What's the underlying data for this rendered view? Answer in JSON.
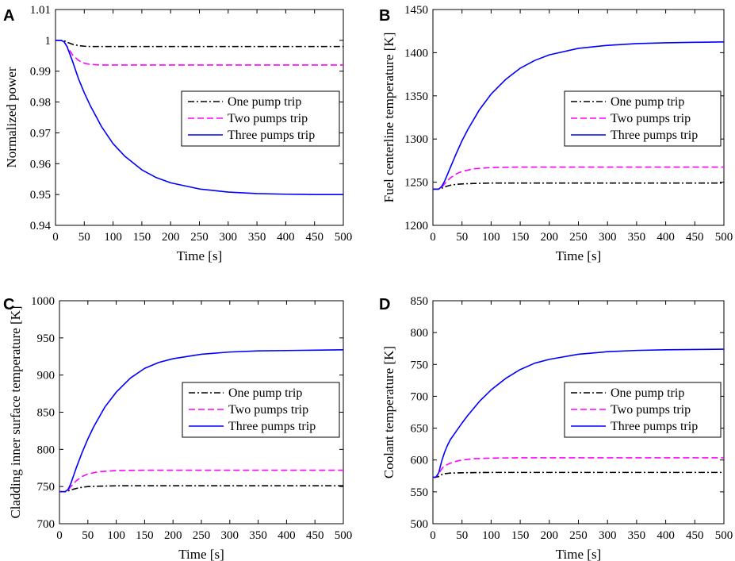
{
  "figure": {
    "background": "#ffffff"
  },
  "legend_entries": [
    {
      "key": "one",
      "label": "One pump trip",
      "color": "#000000",
      "dash": "dashdot"
    },
    {
      "key": "two",
      "label": "Two pumps trip",
      "color": "#ff00ff",
      "dash": "dashed"
    },
    {
      "key": "three",
      "label": "Three pumps trip",
      "color": "#0000ff",
      "dash": "solid"
    }
  ],
  "chart_data": [
    {
      "panel": "A",
      "type": "line",
      "title": "",
      "xlabel": "Time [s]",
      "ylabel": "Normalized power",
      "xlim": [
        0,
        500
      ],
      "ylim": [
        0.94,
        1.01
      ],
      "xticks": [
        0,
        50,
        100,
        150,
        200,
        250,
        300,
        350,
        400,
        450,
        500
      ],
      "xtick_labels": [
        "0",
        "50",
        "100",
        "150",
        "200",
        "250",
        "300",
        "350",
        "400",
        "450",
        "500"
      ],
      "yticks": [
        0.94,
        0.95,
        0.96,
        0.97,
        0.98,
        0.99,
        1.0,
        1.01
      ],
      "ytick_labels": [
        "0.94",
        "0.95",
        "0.96",
        "0.97",
        "0.98",
        "0.99",
        "1",
        "1.01"
      ],
      "legend_position": "center-right",
      "series": [
        {
          "name": "One pump trip",
          "color": "#000000",
          "dash": "dashdot",
          "x": [
            0,
            10,
            15,
            20,
            30,
            40,
            50,
            60,
            80,
            100,
            150,
            200,
            300,
            400,
            500
          ],
          "y": [
            1.0,
            1.0,
            0.9999,
            0.9994,
            0.9987,
            0.9983,
            0.9981,
            0.998,
            0.998,
            0.998,
            0.998,
            0.998,
            0.998,
            0.998,
            0.998
          ]
        },
        {
          "name": "Two pumps trip",
          "color": "#ff00ff",
          "dash": "dashed",
          "x": [
            0,
            10,
            15,
            20,
            30,
            40,
            50,
            60,
            80,
            100,
            150,
            200,
            300,
            400,
            500
          ],
          "y": [
            1.0,
            1.0,
            0.9995,
            0.998,
            0.9952,
            0.9935,
            0.9926,
            0.9922,
            0.992,
            0.992,
            0.992,
            0.992,
            0.992,
            0.992,
            0.992
          ]
        },
        {
          "name": "Three pumps trip",
          "color": "#0000ff",
          "dash": "solid",
          "x": [
            0,
            10,
            15,
            20,
            25,
            30,
            40,
            50,
            60,
            80,
            100,
            120,
            150,
            175,
            200,
            250,
            300,
            350,
            400,
            450,
            500
          ],
          "y": [
            1.0,
            1.0,
            0.9995,
            0.998,
            0.9955,
            0.993,
            0.9875,
            0.983,
            0.979,
            0.972,
            0.9665,
            0.9625,
            0.958,
            0.9555,
            0.9538,
            0.9518,
            0.9508,
            0.9503,
            0.9501,
            0.95,
            0.95
          ]
        }
      ]
    },
    {
      "panel": "B",
      "type": "line",
      "title": "",
      "xlabel": "Time [s]",
      "ylabel": "Fuel centerline temperature [K]",
      "xlim": [
        0,
        500
      ],
      "ylim": [
        1200,
        1450
      ],
      "xticks": [
        0,
        50,
        100,
        150,
        200,
        250,
        300,
        350,
        400,
        450,
        500
      ],
      "xtick_labels": [
        "0",
        "50",
        "100",
        "150",
        "200",
        "250",
        "300",
        "350",
        "400",
        "450",
        "500"
      ],
      "yticks": [
        1200,
        1250,
        1300,
        1350,
        1400,
        1450
      ],
      "ytick_labels": [
        "1200",
        "1250",
        "1300",
        "1350",
        "1400",
        "1450"
      ],
      "legend_position": "center-right",
      "series": [
        {
          "name": "One pump trip",
          "color": "#000000",
          "dash": "dashdot",
          "x": [
            0,
            10,
            15,
            20,
            30,
            40,
            50,
            70,
            100,
            150,
            200,
            300,
            400,
            500
          ],
          "y": [
            1242,
            1242,
            1243,
            1244.5,
            1246.5,
            1247.5,
            1248,
            1248.5,
            1249,
            1249,
            1249,
            1249,
            1249,
            1249
          ]
        },
        {
          "name": "Two pumps trip",
          "color": "#ff00ff",
          "dash": "dashed",
          "x": [
            0,
            10,
            15,
            20,
            30,
            40,
            50,
            70,
            100,
            150,
            200,
            300,
            400,
            500
          ],
          "y": [
            1242,
            1242,
            1244,
            1248,
            1255,
            1259.5,
            1262.5,
            1265.5,
            1267,
            1267.5,
            1267.5,
            1267.5,
            1267.5,
            1267.5
          ]
        },
        {
          "name": "Three pumps trip",
          "color": "#0000ff",
          "dash": "solid",
          "x": [
            0,
            10,
            15,
            20,
            25,
            30,
            40,
            50,
            60,
            80,
            100,
            125,
            150,
            175,
            200,
            250,
            300,
            350,
            400,
            450,
            500
          ],
          "y": [
            1242,
            1242,
            1245,
            1251,
            1259,
            1267,
            1283,
            1298,
            1311,
            1334,
            1352,
            1369,
            1382,
            1391,
            1397.5,
            1405,
            1408.5,
            1410.5,
            1411.5,
            1412,
            1412.5
          ]
        }
      ]
    },
    {
      "panel": "C",
      "type": "line",
      "title": "",
      "xlabel": "Time [s]",
      "ylabel": "Cladding inner surface temperature [K]",
      "xlim": [
        0,
        500
      ],
      "ylim": [
        700,
        1000
      ],
      "xticks": [
        0,
        50,
        100,
        150,
        200,
        250,
        300,
        350,
        400,
        450,
        500
      ],
      "xtick_labels": [
        "0",
        "50",
        "100",
        "150",
        "200",
        "250",
        "300",
        "350",
        "400",
        "450",
        "500"
      ],
      "yticks": [
        700,
        750,
        800,
        850,
        900,
        950,
        1000
      ],
      "ytick_labels": [
        "700",
        "750",
        "800",
        "850",
        "900",
        "950",
        "1000"
      ],
      "legend_position": "center-right",
      "series": [
        {
          "name": "One pump trip",
          "color": "#000000",
          "dash": "dashdot",
          "x": [
            0,
            10,
            15,
            20,
            30,
            40,
            50,
            70,
            100,
            150,
            200,
            300,
            400,
            500
          ],
          "y": [
            743,
            743,
            744,
            745.5,
            747.5,
            749,
            750,
            750.5,
            751,
            751,
            751,
            751,
            751,
            751
          ]
        },
        {
          "name": "Two pumps trip",
          "color": "#ff00ff",
          "dash": "dashed",
          "x": [
            0,
            10,
            15,
            20,
            30,
            40,
            50,
            70,
            100,
            150,
            200,
            300,
            400,
            500
          ],
          "y": [
            743,
            743,
            745,
            750,
            758,
            763.5,
            767,
            770,
            771.5,
            772,
            772,
            772,
            772,
            772
          ]
        },
        {
          "name": "Three pumps trip",
          "color": "#0000ff",
          "dash": "solid",
          "x": [
            0,
            10,
            15,
            20,
            25,
            30,
            40,
            50,
            60,
            80,
            100,
            125,
            150,
            175,
            200,
            250,
            300,
            350,
            400,
            450,
            500
          ],
          "y": [
            743,
            743,
            746,
            754,
            765,
            776,
            796,
            814,
            830,
            857,
            877,
            896,
            909,
            917,
            922,
            928,
            931,
            932.5,
            933,
            933.5,
            934
          ]
        }
      ]
    },
    {
      "panel": "D",
      "type": "line",
      "title": "",
      "xlabel": "Time [s]",
      "ylabel": "Coolant temperature [K]",
      "xlim": [
        0,
        500
      ],
      "ylim": [
        500,
        850
      ],
      "xticks": [
        0,
        50,
        100,
        150,
        200,
        250,
        300,
        350,
        400,
        450,
        500
      ],
      "xtick_labels": [
        "0",
        "50",
        "100",
        "150",
        "200",
        "250",
        "300",
        "350",
        "400",
        "450",
        "500"
      ],
      "yticks": [
        500,
        550,
        600,
        650,
        700,
        750,
        800,
        850
      ],
      "ytick_labels": [
        "500",
        "550",
        "600",
        "650",
        "700",
        "750",
        "800",
        "850"
      ],
      "legend_position": "center-right",
      "series": [
        {
          "name": "One pump trip",
          "color": "#000000",
          "dash": "dashdot",
          "x": [
            0,
            5,
            10,
            15,
            20,
            30,
            50,
            100,
            200,
            300,
            400,
            500
          ],
          "y": [
            573,
            573,
            574,
            577,
            578.5,
            579.5,
            580,
            580.5,
            580.5,
            580.5,
            580.5,
            580.5
          ]
        },
        {
          "name": "Two pumps trip",
          "color": "#ff00ff",
          "dash": "dashed",
          "x": [
            0,
            5,
            10,
            15,
            20,
            30,
            40,
            50,
            70,
            100,
            150,
            200,
            300,
            400,
            500
          ],
          "y": [
            573,
            573,
            578,
            586,
            591,
            595,
            598,
            600,
            602,
            603,
            603.5,
            603.5,
            603.5,
            603.5,
            603.5
          ]
        },
        {
          "name": "Three pumps trip",
          "color": "#0000ff",
          "dash": "solid",
          "x": [
            0,
            5,
            10,
            15,
            20,
            25,
            30,
            40,
            50,
            60,
            80,
            100,
            125,
            150,
            175,
            200,
            250,
            300,
            350,
            400,
            450,
            500
          ],
          "y": [
            573,
            573,
            580,
            598,
            612,
            623,
            632,
            645,
            658,
            670,
            692,
            710,
            728,
            742,
            752,
            758,
            766,
            770,
            772,
            773,
            773.5,
            774
          ]
        }
      ]
    }
  ]
}
